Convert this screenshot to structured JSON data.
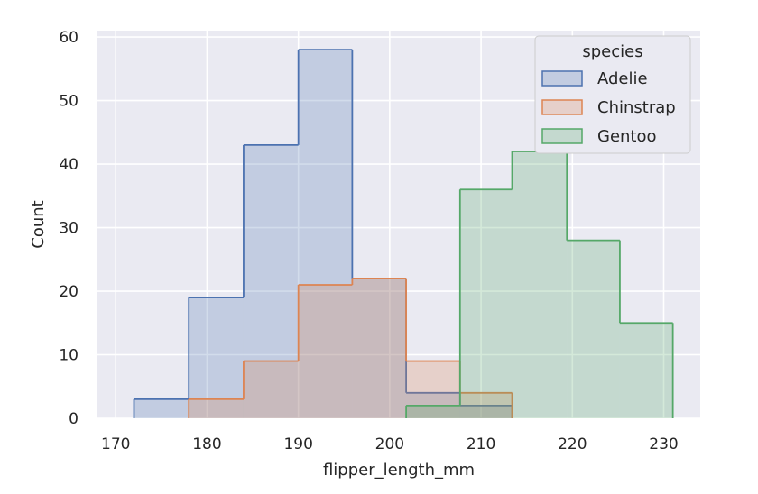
{
  "chart_data": {
    "type": "histogram",
    "xlabel": "flipper_length_mm",
    "ylabel": "Count",
    "xlim": [
      168,
      234
    ],
    "ylim": [
      0,
      61
    ],
    "xticks": [
      "170",
      "180",
      "190",
      "200",
      "210",
      "220",
      "230"
    ],
    "yticks": [
      "0",
      "10",
      "20",
      "30",
      "40",
      "50",
      "60"
    ],
    "grid": true,
    "legend": {
      "title": "species",
      "placement": "top-right"
    },
    "bin_edges": [
      172,
      178,
      184,
      190,
      195.9,
      201.8,
      207.7,
      213.4,
      219.4,
      225.2,
      231
    ],
    "series": [
      {
        "name": "Adelie",
        "color": "#4c72b0",
        "counts": [
          3,
          19,
          43,
          58,
          22,
          4,
          2,
          0,
          0,
          0
        ]
      },
      {
        "name": "Chinstrap",
        "color": "#dd8452",
        "counts": [
          0,
          3,
          9,
          21,
          22,
          9,
          4,
          0,
          0,
          0
        ]
      },
      {
        "name": "Gentoo",
        "color": "#55a868",
        "counts": [
          0,
          0,
          0,
          0,
          0,
          2,
          36,
          42,
          28,
          15
        ]
      }
    ]
  }
}
